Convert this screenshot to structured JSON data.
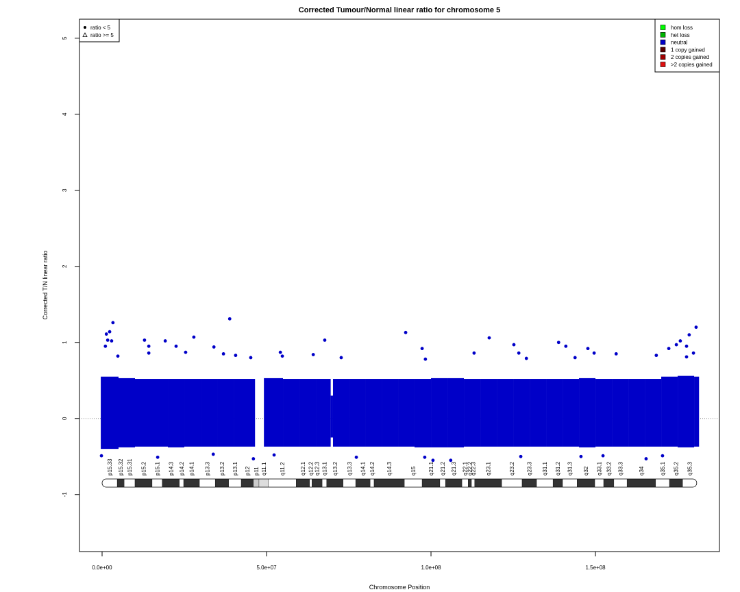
{
  "chart_data": {
    "type": "scatter",
    "title": "Corrected Tumour/Normal linear ratio for chromosome  5",
    "xlabel": "Chromosome Position",
    "ylabel": "Corrected T/N linear ratio",
    "xlim": [
      -6875000,
      187700000
    ],
    "ylim": [
      -1.75,
      5.25
    ],
    "xticks": [
      {
        "value": 0,
        "label": "0.0e+00"
      },
      {
        "value": 50000000,
        "label": "5.0e+07"
      },
      {
        "value": 100000000,
        "label": "1.0e+08"
      },
      {
        "value": 150000000,
        "label": "1.5e+08"
      }
    ],
    "yticks": [
      -1,
      0,
      1,
      2,
      3,
      4,
      5
    ],
    "hline": 0,
    "density": {
      "color": "#0000c8",
      "bins": [
        -400000,
        5000000,
        10000000,
        15000000,
        20000000,
        25000000,
        30000000,
        35000000,
        40000000,
        46500000,
        49200000,
        55000000,
        60000000,
        65000000,
        69500000,
        70200000,
        75000000,
        80000000,
        85000000,
        90000000,
        95000000,
        100000000,
        105000000,
        110000000,
        115000000,
        120000000,
        125000000,
        130000000,
        135000000,
        140000000,
        145000000,
        150000000,
        155000000,
        160000000,
        165000000,
        170000000,
        175000000,
        180000000,
        181500000
      ],
      "low": [
        -0.4,
        -0.38,
        -0.37,
        -0.37,
        -0.38,
        -0.37,
        -0.37,
        -0.37,
        -0.37,
        null,
        -0.37,
        -0.37,
        -0.37,
        -0.37,
        -0.25,
        -0.37,
        -0.37,
        -0.37,
        -0.37,
        -0.37,
        -0.38,
        -0.38,
        -0.38,
        -0.37,
        -0.37,
        -0.37,
        -0.37,
        -0.37,
        -0.37,
        -0.37,
        -0.38,
        -0.37,
        -0.37,
        -0.37,
        -0.37,
        -0.37,
        -0.38,
        -0.37
      ],
      "high": [
        0.55,
        0.53,
        0.52,
        0.52,
        0.52,
        0.52,
        0.52,
        0.52,
        0.52,
        null,
        0.53,
        0.52,
        0.52,
        0.52,
        0.3,
        0.52,
        0.52,
        0.52,
        0.52,
        0.52,
        0.52,
        0.53,
        0.53,
        0.52,
        0.52,
        0.52,
        0.52,
        0.52,
        0.52,
        0.52,
        0.53,
        0.52,
        0.52,
        0.52,
        0.52,
        0.55,
        0.56,
        0.55
      ]
    },
    "series": [
      {
        "color": "#0000c8",
        "x": [
          3300000,
          2300000,
          1300000,
          1700000,
          2900000,
          1000000,
          12900000,
          14200000,
          14200000,
          19200000,
          22500000,
          27900000,
          25400000,
          34000000,
          38800000,
          36900000,
          40600000,
          45200000,
          4800000,
          -200000,
          46000000,
          54200000,
          54800000,
          64200000,
          67700000,
          72700000,
          92300000,
          97300000,
          98300000,
          113100000,
          117700000,
          125200000,
          126700000,
          129000000,
          138800000,
          141000000,
          143800000,
          147700000,
          149600000,
          156300000,
          168500000,
          172300000,
          174600000,
          175800000,
          177700000,
          178500000,
          180600000,
          179800000,
          177700000,
          100600000,
          106000000,
          98100000,
          145600000,
          165400000,
          170400000,
          16900000,
          33800000,
          52300000,
          77300000,
          127300000,
          152300000
        ],
        "values": [
          1.26,
          1.14,
          1.11,
          1.03,
          1.02,
          0.95,
          1.03,
          0.95,
          0.86,
          1.02,
          0.95,
          1.07,
          0.87,
          0.94,
          1.31,
          0.85,
          0.83,
          0.8,
          0.82,
          -0.49,
          -0.53,
          0.87,
          0.82,
          0.84,
          1.03,
          0.8,
          1.13,
          0.92,
          0.78,
          0.86,
          1.06,
          0.97,
          0.86,
          0.79,
          1.0,
          0.95,
          0.8,
          0.92,
          0.86,
          0.85,
          0.83,
          0.92,
          0.97,
          1.02,
          0.95,
          1.1,
          1.2,
          0.86,
          0.81,
          -0.55,
          -0.55,
          -0.51,
          -0.5,
          -0.53,
          -0.49,
          -0.51,
          -0.47,
          -0.48,
          -0.51,
          -0.5,
          -0.49
        ]
      }
    ],
    "ideogram": {
      "labels": [
        "p15.33",
        "p15.32",
        "p15.31",
        "p15.2",
        "p15.1",
        "p14.3",
        "p14.2",
        "p14.1",
        "p13.3",
        "p13.2",
        "p13.1",
        "p12",
        "p11",
        "q11.1",
        "q11.2",
        "q12.1",
        "q12.2",
        "q12.3",
        "q13.1",
        "q13.2",
        "q13.3",
        "q14.1",
        "q14.2",
        "q14.3",
        "q15",
        "q21.1",
        "q21.2",
        "q21.3",
        "q22.1",
        "q22.2",
        "q22.3",
        "q23.1",
        "q23.2",
        "q23.3",
        "q31.1",
        "q31.2",
        "q31.3",
        "q32",
        "q33.1",
        "q33.2",
        "q33.3",
        "q34",
        "q35.1",
        "q35.2",
        "q35.3"
      ],
      "start": [
        0,
        4600000,
        6700000,
        10000000,
        15200000,
        18300000,
        23500000,
        24800000,
        29600000,
        34400000,
        38500000,
        42300000,
        46000000,
        47700000,
        50600000,
        59000000,
        63100000,
        63800000,
        66900000,
        68300000,
        73300000,
        77100000,
        81500000,
        82700000,
        91900000,
        97300000,
        102700000,
        104400000,
        109400000,
        111300000,
        112300000,
        113300000,
        121500000,
        127700000,
        132100000,
        137100000,
        140000000,
        144400000,
        149800000,
        152500000,
        155600000,
        159600000,
        168300000,
        172500000,
        176500000
      ],
      "end": [
        4600000,
        6700000,
        10000000,
        15200000,
        18300000,
        23500000,
        24800000,
        29600000,
        34400000,
        38500000,
        42300000,
        46000000,
        47700000,
        50600000,
        59000000,
        63100000,
        63800000,
        66900000,
        68300000,
        73300000,
        77100000,
        81500000,
        82700000,
        91900000,
        97300000,
        102700000,
        104400000,
        109400000,
        111300000,
        112300000,
        113300000,
        121500000,
        127700000,
        132100000,
        137100000,
        140000000,
        144400000,
        149800000,
        152500000,
        155600000,
        159600000,
        168300000,
        172500000,
        176500000,
        180800000
      ],
      "colors": [
        "#ffffff",
        "#333333",
        "#ffffff",
        "#333333",
        "#ffffff",
        "#333333",
        "#ffffff",
        "#333333",
        "#ffffff",
        "#333333",
        "#ffffff",
        "#333333",
        "#cccccc",
        "#dddddd",
        "#ffffff",
        "#333333",
        "#ffffff",
        "#333333",
        "#ffffff",
        "#333333",
        "#ffffff",
        "#333333",
        "#ffffff",
        "#333333",
        "#ffffff",
        "#333333",
        "#ffffff",
        "#333333",
        "#ffffff",
        "#333333",
        "#ffffff",
        "#333333",
        "#ffffff",
        "#333333",
        "#ffffff",
        "#333333",
        "#ffffff",
        "#333333",
        "#ffffff",
        "#333333",
        "#ffffff",
        "#333333",
        "#ffffff",
        "#333333",
        "#ffffff"
      ]
    },
    "legend_shapes": {
      "position": "topleft",
      "items": [
        {
          "label": "ratio < 5",
          "shape": "circle"
        },
        {
          "label": "ratio >= 5",
          "shape": "triangle"
        }
      ]
    },
    "legend_states": {
      "position": "topright",
      "items": [
        {
          "label": "hom loss",
          "color": "#00ff00"
        },
        {
          "label": "het loss",
          "color": "#00b400"
        },
        {
          "label": "neutral",
          "color": "#0000c8"
        },
        {
          "label": "1 copy gained",
          "color": "#5a0000"
        },
        {
          "label": "2 copies gained",
          "color": "#a00000"
        },
        {
          "label": ">2 copies gained",
          "color": "#e01010"
        }
      ]
    }
  }
}
